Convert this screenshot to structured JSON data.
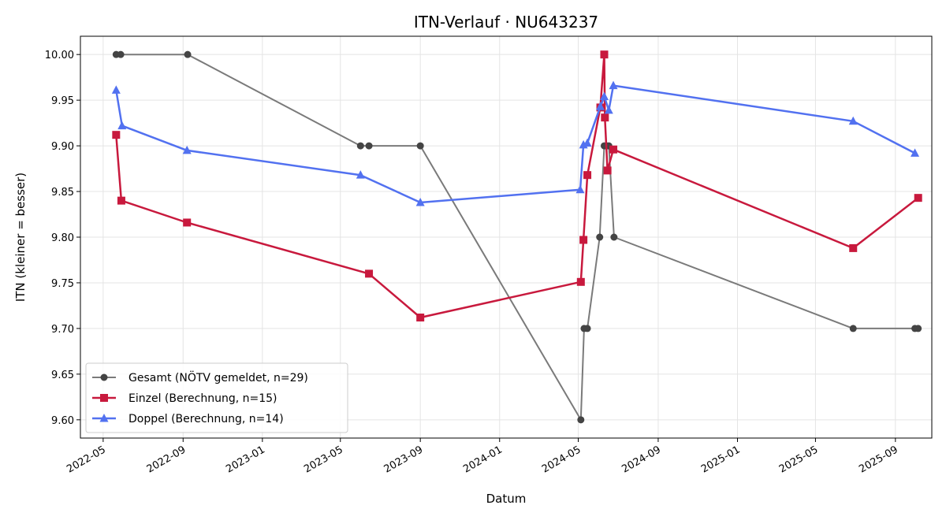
{
  "chart_data": {
    "type": "line",
    "title": "ITN-Verlauf · NU643237",
    "xlabel": "Datum",
    "ylabel": "ITN  (kleiner = besser)",
    "x_type": "date",
    "xlim": [
      "2022-03-27",
      "2025-10-27"
    ],
    "ylim": [
      9.58,
      10.02
    ],
    "x_ticks": [
      "2022-05",
      "2022-09",
      "2023-01",
      "2023-05",
      "2023-09",
      "2024-01",
      "2024-05",
      "2024-09",
      "2025-01",
      "2025-05",
      "2025-09"
    ],
    "y_ticks": [
      "9.60",
      "9.65",
      "9.70",
      "9.75",
      "9.80",
      "9.85",
      "9.90",
      "9.95",
      "10.00"
    ],
    "grid": true,
    "legend_position": "lower-left",
    "series": [
      {
        "name": "Gesamt (NÖTV gemeldet, n=29)",
        "color": "#444444",
        "line_color": "#7a7a7a",
        "marker": "circle",
        "points": [
          [
            "2022-05-21",
            10.0
          ],
          [
            "2022-05-28",
            10.0
          ],
          [
            "2022-09-08",
            10.0
          ],
          [
            "2023-06-01",
            9.9
          ],
          [
            "2023-06-14",
            9.9
          ],
          [
            "2023-09-01",
            9.9
          ],
          [
            "2024-05-05",
            9.6
          ],
          [
            "2024-05-10",
            9.7
          ],
          [
            "2024-05-15",
            9.7
          ],
          [
            "2024-06-03",
            9.8
          ],
          [
            "2024-06-10",
            9.9
          ],
          [
            "2024-06-14",
            9.9
          ],
          [
            "2024-06-17",
            9.9
          ],
          [
            "2024-06-25",
            9.8
          ],
          [
            "2025-06-28",
            9.7
          ],
          [
            "2025-10-01",
            9.7
          ],
          [
            "2025-10-06",
            9.7
          ]
        ]
      },
      {
        "name": "Einzel (Berechnung, n=15)",
        "color": "#c8193d",
        "marker": "square",
        "points": [
          [
            "2022-05-21",
            9.912
          ],
          [
            "2022-05-29",
            9.84
          ],
          [
            "2022-09-07",
            9.816
          ],
          [
            "2023-06-14",
            9.76
          ],
          [
            "2023-09-01",
            9.712
          ],
          [
            "2024-05-05",
            9.751
          ],
          [
            "2024-05-09",
            9.797
          ],
          [
            "2024-05-15",
            9.868
          ],
          [
            "2024-06-04",
            9.942
          ],
          [
            "2024-06-10",
            10.0
          ],
          [
            "2024-06-11",
            9.931
          ],
          [
            "2024-06-15",
            9.873
          ],
          [
            "2024-06-24",
            9.896
          ],
          [
            "2025-06-28",
            9.788
          ],
          [
            "2025-10-06",
            9.843
          ]
        ]
      },
      {
        "name": "Doppel (Berechnung, n=14)",
        "color": "#5271f0",
        "marker": "triangle",
        "points": [
          [
            "2022-05-21",
            9.961
          ],
          [
            "2022-05-30",
            9.922
          ],
          [
            "2022-09-07",
            9.895
          ],
          [
            "2023-06-01",
            9.868
          ],
          [
            "2023-09-01",
            9.838
          ],
          [
            "2024-05-04",
            9.852
          ],
          [
            "2024-05-09",
            9.901
          ],
          [
            "2024-05-15",
            9.903
          ],
          [
            "2024-06-04",
            9.943
          ],
          [
            "2024-06-10",
            9.954
          ],
          [
            "2024-06-17",
            9.939
          ],
          [
            "2024-06-24",
            9.966
          ],
          [
            "2025-06-28",
            9.927
          ],
          [
            "2025-10-01",
            9.892
          ]
        ]
      }
    ]
  }
}
